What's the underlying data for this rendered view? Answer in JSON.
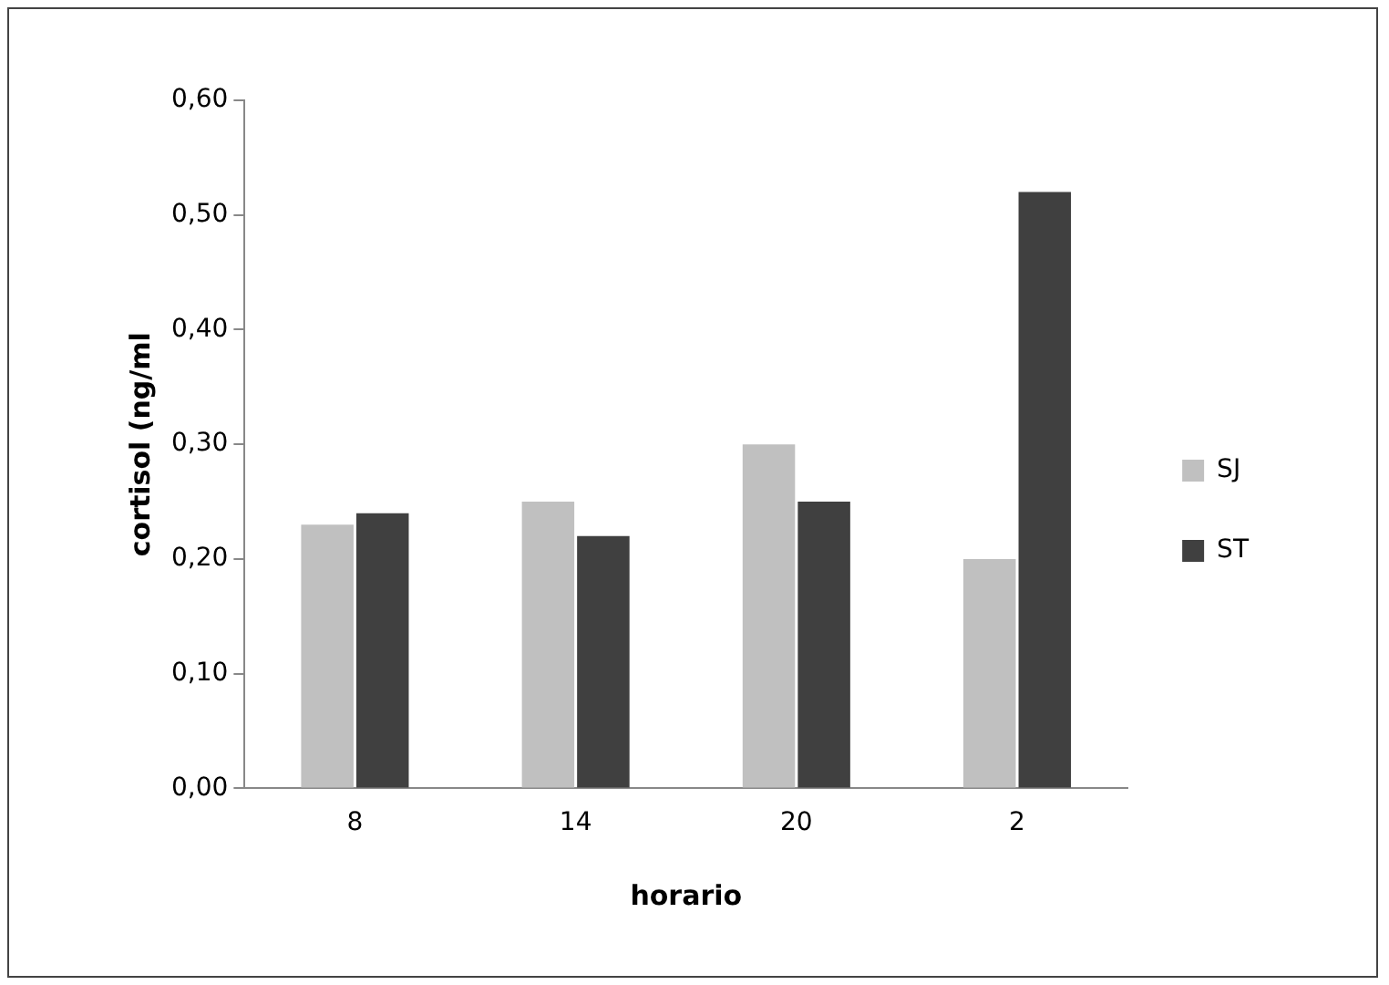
{
  "chart_data": {
    "type": "bar",
    "xlabel": "horario",
    "ylabel": "cortisol (ng/ml",
    "categories": [
      "8",
      "14",
      "20",
      "2"
    ],
    "series": [
      {
        "name": "SJ",
        "color": "#c0c0c0",
        "values": [
          0.23,
          0.25,
          0.3,
          0.2
        ]
      },
      {
        "name": "ST",
        "color": "#404040",
        "values": [
          0.24,
          0.22,
          0.25,
          0.52
        ]
      }
    ],
    "ylim": [
      0,
      0.6
    ],
    "yticks": [
      {
        "value": 0,
        "label": "0,00"
      },
      {
        "value": 0.1,
        "label": "0,10"
      },
      {
        "value": 0.2,
        "label": "0,20"
      },
      {
        "value": 0.3,
        "label": "0,30"
      },
      {
        "value": 0.4,
        "label": "0,40"
      },
      {
        "value": 0.5,
        "label": "0,50"
      },
      {
        "value": 0.6,
        "label": "0,60"
      }
    ],
    "grid": false,
    "legend": "right"
  }
}
